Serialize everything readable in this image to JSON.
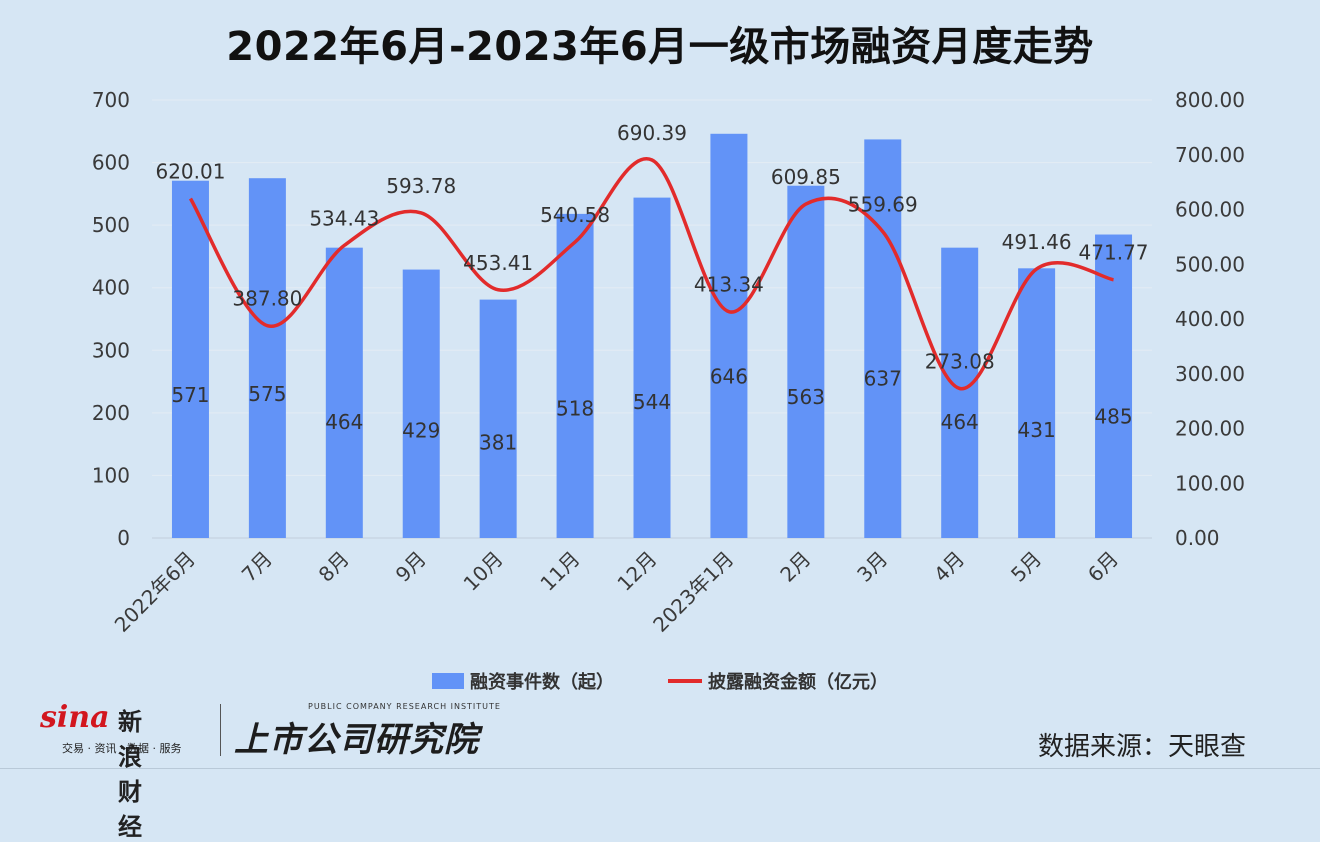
{
  "chart_data": {
    "type": "bar",
    "title": "2022年6月-2023年6月一级市场融资月度走势",
    "categories": [
      "2022年6月",
      "7月",
      "8月",
      "9月",
      "10月",
      "11月",
      "12月",
      "2023年1月",
      "2月",
      "3月",
      "4月",
      "5月",
      "6月"
    ],
    "series": [
      {
        "name": "融资事件数（起）",
        "type": "bar",
        "axis": "left",
        "color": "#6293f7",
        "values": [
          571,
          575,
          464,
          429,
          381,
          518,
          544,
          646,
          563,
          637,
          464,
          431,
          485
        ],
        "labels": [
          "571",
          "575",
          "464",
          "429",
          "381",
          "518",
          "544",
          "646",
          "563",
          "637",
          "464",
          "431",
          "485"
        ]
      },
      {
        "name": "披露融资金额（亿元）",
        "type": "line",
        "axis": "right",
        "color": "#e22b2b",
        "smooth": true,
        "values": [
          620.01,
          387.8,
          534.43,
          593.78,
          453.41,
          540.58,
          690.39,
          413.34,
          609.85,
          559.69,
          273.08,
          491.46,
          471.77
        ],
        "labels": [
          "620.01",
          "387.80",
          "534.43",
          "593.78",
          "453.41",
          "540.58",
          "690.39",
          "413.34",
          "609.85",
          "559.69",
          "273.08",
          "491.46",
          "471.77"
        ]
      }
    ],
    "y_left": {
      "min": 0,
      "max": 700,
      "ticks": [
        "0",
        "100",
        "200",
        "300",
        "400",
        "500",
        "600",
        "700"
      ]
    },
    "y_right": {
      "min": 0,
      "max": 800,
      "ticks": [
        "0.00",
        "100.00",
        "200.00",
        "300.00",
        "400.00",
        "500.00",
        "600.00",
        "700.00",
        "800.00"
      ]
    },
    "grid": true,
    "legend_position": "bottom"
  },
  "footer": {
    "source": "数据来源：天眼查",
    "logo_sina_word": "sina",
    "logo_sina_cn": "新浪财经",
    "logo_sina_sub": "交易 · 资讯 · 数据 · 服务",
    "logo_inst_en": "PUBLIC COMPANY RESEARCH INSTITUTE",
    "logo_inst_cn": "上市公司研究院"
  }
}
